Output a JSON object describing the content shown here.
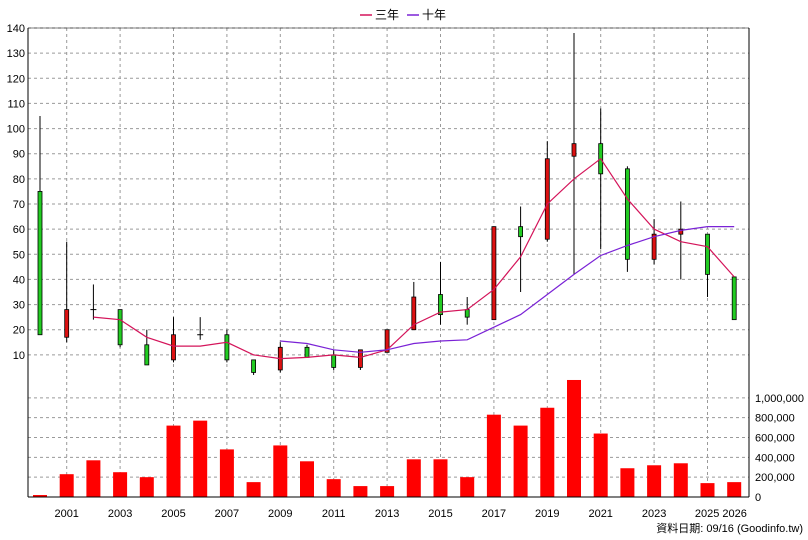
{
  "chart_data": {
    "type": "candlestick",
    "legend": [
      {
        "name": "三年",
        "color": "#d4145a"
      },
      {
        "name": "十年",
        "color": "#7a22d6"
      }
    ],
    "price_axis": {
      "min": 0,
      "max": 140,
      "ticks": [
        10,
        20,
        30,
        40,
        50,
        60,
        70,
        80,
        90,
        100,
        110,
        120,
        130,
        140
      ],
      "grid": true
    },
    "volume_axis": {
      "min": 0,
      "max": 1200000,
      "ticks": [
        0,
        200000,
        400000,
        600000,
        800000,
        1000000
      ],
      "tick_labels": [
        "0",
        "200,000",
        "400,000",
        "600,000",
        "800,000",
        "1,000,000"
      ],
      "grid": true
    },
    "x_tick_labels": [
      "2001",
      "2003",
      "2005",
      "2007",
      "2009",
      "2011",
      "2013",
      "2015",
      "2017",
      "2019",
      "2021",
      "2023",
      "2025 2026"
    ],
    "years": [
      "2000",
      "2001",
      "2002",
      "2003",
      "2004",
      "2005",
      "2006",
      "2007",
      "2008",
      "2009",
      "2010",
      "2011",
      "2012",
      "2013",
      "2014",
      "2015",
      "2016",
      "2017",
      "2018",
      "2019",
      "2020",
      "2021",
      "2022",
      "2023",
      "2024",
      "2025",
      "2026"
    ],
    "candles": [
      {
        "o": 18,
        "h": 105,
        "l": 18,
        "c": 75
      },
      {
        "o": 28,
        "h": 55,
        "l": 15,
        "c": 17
      },
      {
        "o": 28,
        "h": 38,
        "l": 24,
        "c": 28
      },
      {
        "o": 14,
        "h": 28,
        "l": 13,
        "c": 28
      },
      {
        "o": 6,
        "h": 20,
        "l": 6,
        "c": 14
      },
      {
        "o": 18,
        "h": 25,
        "l": 7,
        "c": 8
      },
      {
        "o": 18,
        "h": 25,
        "l": 16,
        "c": 18
      },
      {
        "o": 8,
        "h": 20,
        "l": 7,
        "c": 18
      },
      {
        "o": 3,
        "h": 8,
        "l": 2,
        "c": 8
      },
      {
        "o": 13,
        "h": 15,
        "l": 3,
        "c": 4
      },
      {
        "o": 9,
        "h": 14,
        "l": 9,
        "c": 13
      },
      {
        "o": 5,
        "h": 12,
        "l": 4,
        "c": 10
      },
      {
        "o": 12,
        "h": 12,
        "l": 4,
        "c": 5
      },
      {
        "o": 20,
        "h": 20,
        "l": 11,
        "c": 11
      },
      {
        "o": 33,
        "h": 39,
        "l": 20,
        "c": 20
      },
      {
        "o": 26,
        "h": 47,
        "l": 22,
        "c": 34
      },
      {
        "o": 25,
        "h": 33,
        "l": 22,
        "c": 28
      },
      {
        "o": 61,
        "h": 61,
        "l": 24,
        "c": 24
      },
      {
        "o": 57,
        "h": 69,
        "l": 35,
        "c": 61
      },
      {
        "o": 88,
        "h": 95,
        "l": 55,
        "c": 56
      },
      {
        "o": 94,
        "h": 138,
        "l": 42,
        "c": 89
      },
      {
        "o": 82,
        "h": 108,
        "l": 52,
        "c": 94
      },
      {
        "o": 48,
        "h": 85,
        "l": 43,
        "c": 84
      },
      {
        "o": 58,
        "h": 64,
        "l": 46,
        "c": 48
      },
      {
        "o": 60,
        "h": 71,
        "l": 40,
        "c": 58
      },
      {
        "o": 42,
        "h": 58,
        "l": 33,
        "c": 58
      },
      {
        "o": 24,
        "h": 41,
        "l": 24,
        "c": 41
      }
    ],
    "ma3": [
      null,
      null,
      25,
      24,
      17,
      13.5,
      13.5,
      15,
      10,
      8.5,
      9,
      10,
      9,
      12,
      22,
      27,
      28,
      36,
      49,
      70,
      80,
      88,
      72,
      60,
      55,
      53,
      41
    ],
    "ma10": [
      null,
      null,
      null,
      null,
      null,
      null,
      null,
      null,
      null,
      15.5,
      14.5,
      12,
      11,
      12,
      14.5,
      15.5,
      16,
      21,
      26,
      34,
      42,
      49.5,
      53.5,
      57,
      59.5,
      61,
      61
    ],
    "volumes": [
      20000,
      230000,
      370000,
      250000,
      200000,
      720000,
      770000,
      480000,
      150000,
      520000,
      360000,
      180000,
      110000,
      110000,
      380000,
      380000,
      200000,
      830000,
      720000,
      900000,
      1180000,
      640000,
      290000,
      320000,
      340000,
      140000,
      150000
    ],
    "bar_color": "#ff0000",
    "up_color": "#22cc22",
    "down_color": "#dd1111",
    "source_note": "資料日期: 09/16  (Goodinfo.tw)"
  }
}
